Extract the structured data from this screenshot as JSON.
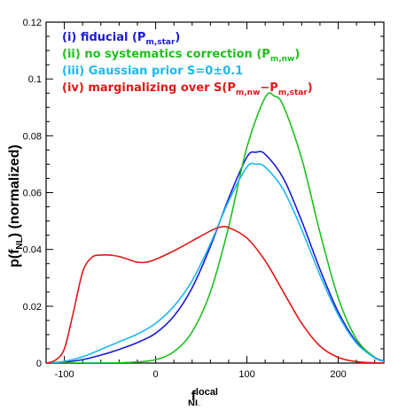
{
  "chart_data": {
    "type": "line",
    "title": "",
    "xlabel": "f",
    "xlabel_sup": "local",
    "xlabel_sub": "NL",
    "ylabel_prefix": "p(f",
    "ylabel_sub": "NL",
    "ylabel_suffix": ")  (normalized)",
    "xlim": [
      -120,
      250
    ],
    "ylim": [
      0,
      0.12
    ],
    "xticks": [
      -100,
      0,
      100,
      200
    ],
    "xtick_labels": [
      "-100",
      "0",
      "100",
      "200"
    ],
    "yticks": [
      0,
      0.02,
      0.04,
      0.06,
      0.08,
      0.1,
      0.12
    ],
    "ytick_labels": [
      "0",
      "0.02",
      "0.04",
      "0.06",
      "0.08",
      "0.1",
      "0.12"
    ],
    "legend_position": "top-left",
    "grid": false,
    "series": [
      {
        "name": "(i) fiducial (Pm,star)",
        "legend_main": "(i) fiducial (P",
        "legend_sub": "m,star",
        "legend_tail": ")",
        "color": "#1a1ad6",
        "x": [
          -120,
          -100,
          -80,
          -60,
          -40,
          -20,
          0,
          20,
          40,
          60,
          80,
          100,
          110,
          120,
          140,
          160,
          180,
          200,
          220,
          240,
          250
        ],
        "y": [
          0,
          0.0003,
          0.0012,
          0.0028,
          0.0048,
          0.0072,
          0.0105,
          0.0165,
          0.0265,
          0.041,
          0.058,
          0.0725,
          0.0742,
          0.0735,
          0.065,
          0.05,
          0.033,
          0.018,
          0.0075,
          0.002,
          0.0008
        ]
      },
      {
        "name": "(ii) no systematics correction (Pm,nw)",
        "legend_main": "(ii) no systematics correction (P",
        "legend_sub": "m,nw",
        "legend_tail": ")",
        "color": "#1fbf1f",
        "x": [
          -120,
          -100,
          -80,
          -60,
          -40,
          -20,
          0,
          20,
          40,
          60,
          80,
          100,
          120,
          130,
          140,
          160,
          180,
          200,
          220,
          240,
          250
        ],
        "y": [
          0,
          0,
          0,
          0,
          0.0001,
          0.0004,
          0.0012,
          0.004,
          0.011,
          0.025,
          0.048,
          0.076,
          0.0935,
          0.094,
          0.0905,
          0.072,
          0.046,
          0.023,
          0.0085,
          0.002,
          0.0006
        ]
      },
      {
        "name": "(iii) Gaussian prior S=0±0.1",
        "legend_main": "(iii) Gaussian prior S=0±0.1",
        "legend_sub": "",
        "legend_tail": "",
        "color": "#1fb8ef",
        "x": [
          -120,
          -100,
          -80,
          -60,
          -40,
          -20,
          0,
          20,
          40,
          60,
          80,
          100,
          110,
          120,
          140,
          160,
          180,
          200,
          220,
          240,
          250
        ],
        "y": [
          0,
          0.0006,
          0.0022,
          0.0048,
          0.0075,
          0.0102,
          0.014,
          0.02,
          0.029,
          0.042,
          0.057,
          0.069,
          0.07,
          0.069,
          0.061,
          0.047,
          0.031,
          0.017,
          0.007,
          0.0018,
          0.0007
        ]
      },
      {
        "name": "(iv) marginalizing over S(Pm,nw−Pm,star)",
        "legend_main": "(iv) marginalizing over S(P",
        "legend_sub": "m,nw",
        "legend_mid": "−P",
        "legend_sub2": "m,star",
        "legend_tail": ")",
        "color": "#e01818",
        "x": [
          -120,
          -110,
          -100,
          -90,
          -80,
          -70,
          -60,
          -50,
          -40,
          -30,
          -20,
          -10,
          0,
          20,
          40,
          60,
          70,
          80,
          100,
          120,
          140,
          160,
          180,
          200,
          220,
          240,
          250
        ],
        "y": [
          0,
          0.001,
          0.005,
          0.018,
          0.032,
          0.0372,
          0.038,
          0.038,
          0.0375,
          0.0365,
          0.0355,
          0.0355,
          0.0365,
          0.0395,
          0.043,
          0.0465,
          0.0478,
          0.0477,
          0.044,
          0.036,
          0.025,
          0.014,
          0.006,
          0.002,
          0.0005,
          0.0001,
          0
        ]
      }
    ]
  }
}
